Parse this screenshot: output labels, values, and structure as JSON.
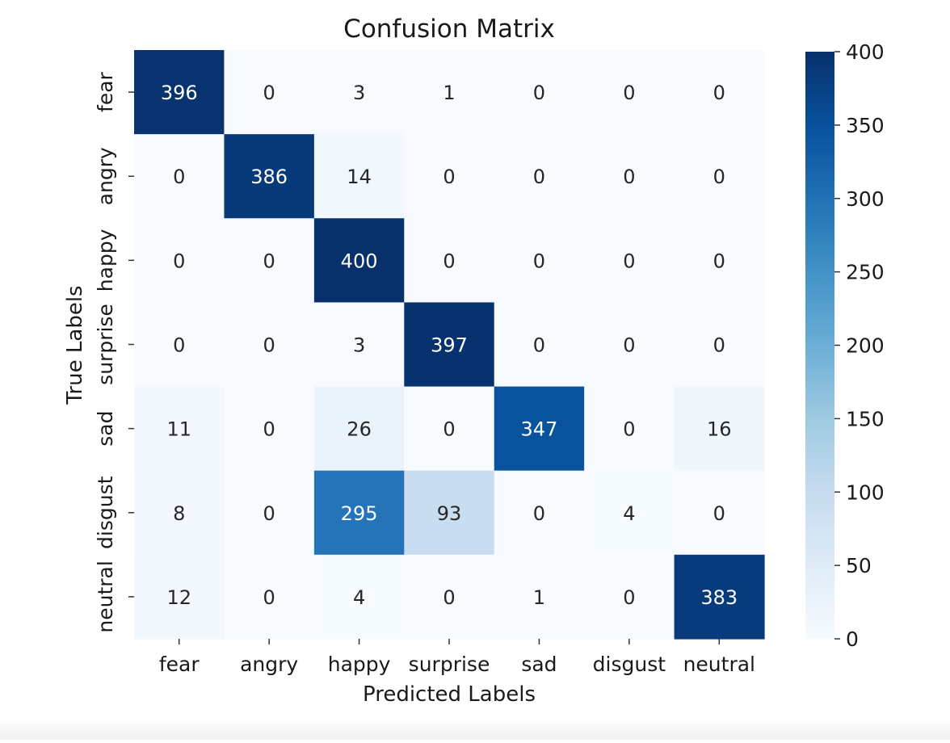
{
  "chart_data": {
    "type": "heatmap",
    "title": "Confusion Matrix",
    "xlabel": "Predicted Labels",
    "ylabel": "True Labels",
    "x_categories": [
      "fear",
      "angry",
      "happy",
      "surprise",
      "sad",
      "disgust",
      "neutral"
    ],
    "y_categories": [
      "fear",
      "angry",
      "happy",
      "surprise",
      "sad",
      "disgust",
      "neutral"
    ],
    "values": [
      [
        396,
        0,
        3,
        1,
        0,
        0,
        0
      ],
      [
        0,
        386,
        14,
        0,
        0,
        0,
        0
      ],
      [
        0,
        0,
        400,
        0,
        0,
        0,
        0
      ],
      [
        0,
        0,
        3,
        397,
        0,
        0,
        0
      ],
      [
        11,
        0,
        26,
        0,
        347,
        0,
        16
      ],
      [
        8,
        0,
        295,
        93,
        0,
        4,
        0
      ],
      [
        12,
        0,
        4,
        0,
        1,
        0,
        383
      ]
    ],
    "colormap": "Blues",
    "colorbar": {
      "range": [
        0,
        400
      ],
      "ticks": [
        0,
        50,
        100,
        150,
        200,
        250,
        300,
        350,
        400
      ]
    },
    "annotations": "cell values shown",
    "grid": false,
    "legend": "colorbar at right"
  }
}
